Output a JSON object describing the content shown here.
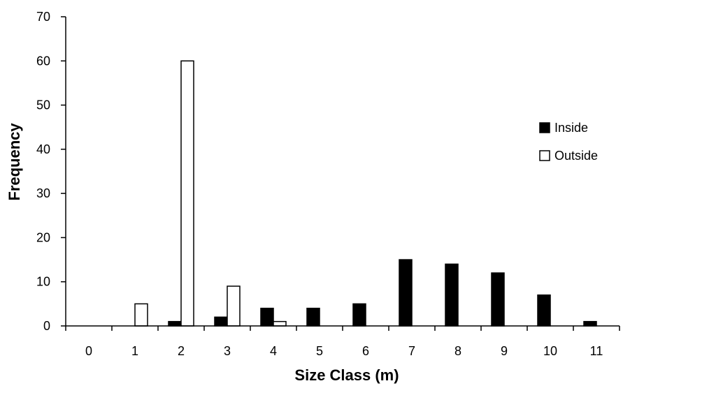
{
  "chart_data": {
    "type": "bar",
    "title": "",
    "xlabel": "Size Class (m)",
    "ylabel": "Frequency",
    "categories": [
      "0",
      "1",
      "2",
      "3",
      "4",
      "5",
      "6",
      "7",
      "8",
      "9",
      "10",
      "11"
    ],
    "series": [
      {
        "name": "Inside",
        "fill": "#000000",
        "stroke": "#000000",
        "values": [
          0,
          0,
          1,
          2,
          4,
          4,
          5,
          15,
          14,
          12,
          7,
          1
        ]
      },
      {
        "name": "Outside",
        "fill": "#ffffff",
        "stroke": "#000000",
        "values": [
          0,
          5,
          60,
          9,
          1,
          0,
          0,
          0,
          0,
          0,
          0,
          0
        ]
      }
    ],
    "ylim": [
      0,
      70
    ],
    "yticks": [
      0,
      10,
      20,
      30,
      40,
      50,
      60,
      70
    ],
    "grid": false,
    "legend_position": "right"
  }
}
